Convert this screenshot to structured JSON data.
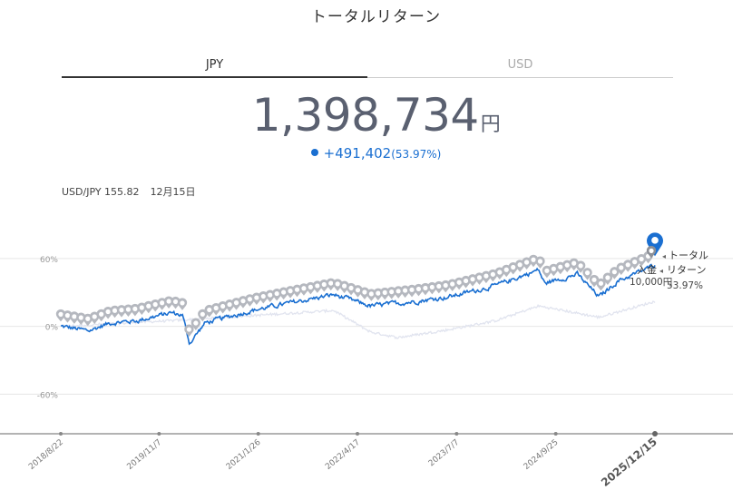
{
  "title": "トータルリターン",
  "tabs": [
    {
      "label": "JPY",
      "active": true
    },
    {
      "label": "USD",
      "active": false
    }
  ],
  "total": {
    "value": "1,398,734",
    "unit": "円"
  },
  "change": {
    "value": "+491,402",
    "percent": "(53.97%)"
  },
  "fx": {
    "label": "USD/JPY 155.82",
    "date": "12月15日"
  },
  "colors": {
    "return_line": "#1a6fd1",
    "deposit_line": "#e1e4ef",
    "markers": "#b5b8bf",
    "current_marker": "#1a6fd1"
  },
  "chart_data": {
    "type": "line",
    "y_ticks": [
      "60%",
      "0%",
      "-60%"
    ],
    "x_ticks": [
      "2018/8/22",
      "2019/11/7",
      "2021/1/26",
      "2022/4/17",
      "2023/7/7",
      "2024/9/25",
      "2025/12/15"
    ],
    "ylim": [
      -95,
      100
    ],
    "xlim": [
      "2018/8/22",
      "2025/12/15"
    ],
    "series": [
      {
        "name": "トータルリターン",
        "values": [
          [
            "2018/8/22",
            0
          ],
          [
            "2018/12/25",
            -4
          ],
          [
            "2019/4/1",
            3
          ],
          [
            "2019/8/1",
            5
          ],
          [
            "2019/12/31",
            12
          ],
          [
            "2020/2/20",
            10
          ],
          [
            "2020/3/23",
            -15
          ],
          [
            "2020/6/1",
            3
          ],
          [
            "2020/12/31",
            14
          ],
          [
            "2021/6/1",
            20
          ],
          [
            "2021/12/31",
            28
          ],
          [
            "2022/6/15",
            18
          ],
          [
            "2022/12/31",
            22
          ],
          [
            "2023/6/1",
            26
          ],
          [
            "2023/12/31",
            36
          ],
          [
            "2024/7/10",
            50
          ],
          [
            "2024/8/5",
            38
          ],
          [
            "2024/12/31",
            46
          ],
          [
            "2025/4/8",
            26
          ],
          [
            "2025/7/1",
            40
          ],
          [
            "2025/12/15",
            53.97
          ]
        ]
      },
      {
        "name": "入金",
        "values": [
          [
            "2018/8/22",
            0
          ],
          [
            "2019/12/31",
            5
          ],
          [
            "2021/12/31",
            14
          ],
          [
            "2022/6/15",
            -5
          ],
          [
            "2022/10/15",
            -10
          ],
          [
            "2023/6/1",
            -3
          ],
          [
            "2023/12/31",
            5
          ],
          [
            "2024/7/10",
            18
          ],
          [
            "2025/4/8",
            8
          ],
          [
            "2025/12/15",
            22
          ]
        ]
      }
    ],
    "legend": [
      {
        "label": "トータル"
      },
      {
        "label": "入金"
      },
      {
        "label": "リターン"
      }
    ],
    "current_labels": {
      "deposit": "10,000円",
      "return": "53.97%"
    },
    "grid": true
  }
}
